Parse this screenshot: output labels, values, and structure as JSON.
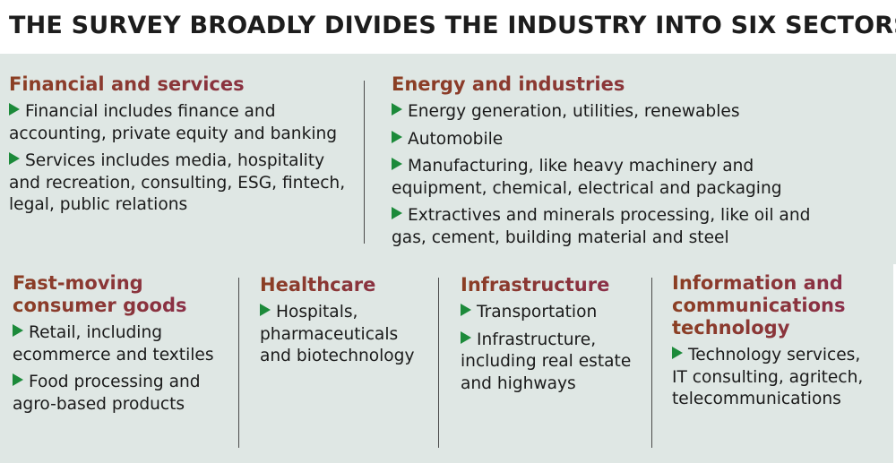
{
  "title": "THE SURVEY BROADLY DIVIDES THE INDUSTRY INTO SIX SECTORS",
  "colors": {
    "panel_bg": "#dfe7e4",
    "heading_start": "#8b3f23",
    "heading_end": "#8a2b4f",
    "bullet": "#1c8a3a",
    "divider": "#4a4a4a"
  },
  "icons": {
    "bullet": "green-triangle-bullet-icon"
  },
  "sectors": [
    {
      "title": "Financial and services",
      "items": [
        "Financial includes finance and accounting, private equity and banking",
        "Services includes media, hospitality and recreation, consulting, ESG, fintech, legal, public relations"
      ]
    },
    {
      "title": "Energy and industries",
      "items": [
        "Energy generation, utilities, renewables",
        "Automobile",
        "Manufacturing, like heavy machinery and equipment, chemical, electrical and packaging",
        "Extractives and minerals processing, like oil and gas, cement, building material and steel"
      ]
    },
    {
      "title": "Fast-moving consumer goods",
      "items": [
        "Retail, including ecommerce and textiles",
        "Food processing and agro-based products"
      ]
    },
    {
      "title": "Healthcare",
      "items": [
        "Hospitals, pharmaceuticals and biotechnology"
      ]
    },
    {
      "title": "Infrastructure",
      "items": [
        "Transportation",
        "Infrastructure, including real estate and highways"
      ]
    },
    {
      "title": "Information and communications technology",
      "items": [
        "Technology services, IT consulting, agritech, telecommunications"
      ]
    }
  ]
}
